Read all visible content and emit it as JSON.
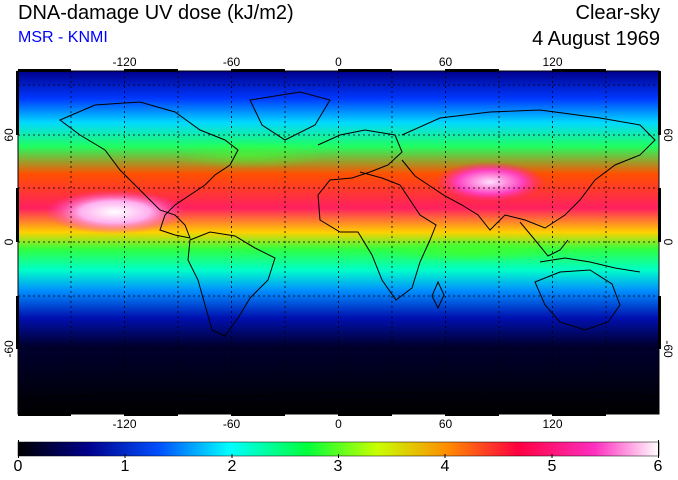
{
  "header": {
    "title": "DNA-damage UV dose (kJ/m2)",
    "source": "MSR - KNMI",
    "sky": "Clear-sky",
    "date": "4 August 1969"
  },
  "map": {
    "longitude_ticks": [
      "-120",
      "-60",
      "0",
      "60",
      "120"
    ],
    "latitude_ticks": [
      "60",
      "0",
      "-60"
    ],
    "grid": "dotted 30-degree graticule",
    "coastlines": "black outline"
  },
  "colorbar": {
    "labels": [
      "0",
      "1",
      "2",
      "3",
      "4",
      "5",
      "6"
    ],
    "colors": [
      "#000000",
      "#00008c",
      "#0050ff",
      "#00ffff",
      "#00ff3c",
      "#c8ff00",
      "#ff8c00",
      "#ff0040",
      "#ff30c0",
      "#ffffff"
    ]
  }
}
